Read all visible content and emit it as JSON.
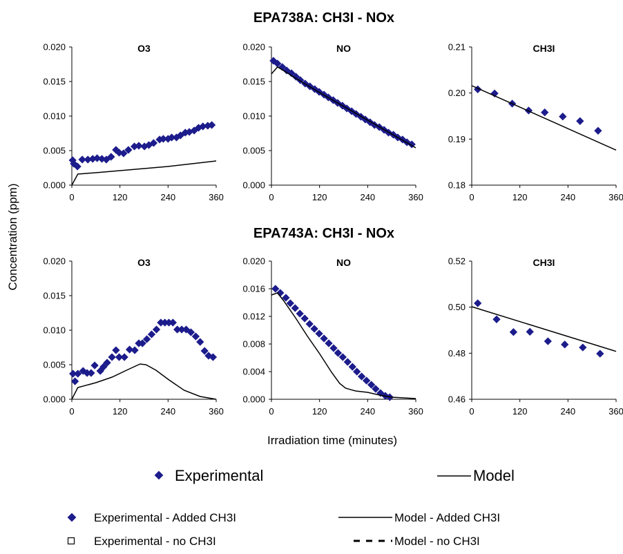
{
  "xlabel": "Irradiation time (minutes)",
  "ylabel": "Concentration (ppm)",
  "legend": {
    "experimental": "Experimental",
    "model": "Model",
    "exp_added": "Experimental - Added CH3I",
    "model_added": "Model - Added CH3I",
    "exp_no": "Experimental - no CH3I",
    "model_no": "Model - no CH3I"
  },
  "colors": {
    "experimental": "#1c1c8c",
    "model": "#000000"
  },
  "chart_data": [
    {
      "type": "scatter",
      "group_title": "EPA738A: CH3I - NOx",
      "title": "O3",
      "xlim": [
        0,
        360
      ],
      "xticks": [
        0,
        120,
        240,
        360
      ],
      "ylim": [
        0,
        0.02
      ],
      "yticks": [
        0,
        0.005,
        0.01,
        0.015,
        0.02
      ],
      "ydec": 3,
      "series": [
        {
          "kind": "markers",
          "x": [
            2,
            5,
            14,
            26,
            40,
            52,
            63,
            75,
            86,
            98,
            110,
            118,
            129,
            141,
            156,
            167,
            181,
            192,
            204,
            219,
            228,
            240,
            249,
            261,
            271,
            283,
            293,
            305,
            316,
            327,
            339,
            349
          ],
          "y": [
            0.0036,
            0.0031,
            0.0027,
            0.0037,
            0.0037,
            0.0038,
            0.0039,
            0.0038,
            0.0037,
            0.0041,
            0.0051,
            0.0047,
            0.0046,
            0.0051,
            0.0056,
            0.0057,
            0.0056,
            0.0058,
            0.0061,
            0.0066,
            0.0067,
            0.0067,
            0.0069,
            0.0069,
            0.0072,
            0.0076,
            0.0077,
            0.0079,
            0.0083,
            0.0085,
            0.0086,
            0.0087
          ]
        },
        {
          "kind": "line",
          "x": [
            0,
            15,
            60,
            120,
            180,
            240,
            300,
            360
          ],
          "y": [
            0.0,
            0.0016,
            0.0018,
            0.0021,
            0.0024,
            0.0027,
            0.0031,
            0.0035
          ]
        }
      ]
    },
    {
      "type": "scatter",
      "title": "NO",
      "xlim": [
        0,
        360
      ],
      "xticks": [
        0,
        120,
        240,
        360
      ],
      "ylim": [
        0,
        0.02
      ],
      "yticks": [
        0,
        0.005,
        0.01,
        0.015,
        0.02
      ],
      "ydec": 3,
      "series": [
        {
          "kind": "markers",
          "x": [
            5,
            15,
            27,
            38,
            50,
            61,
            72,
            84,
            96,
            108,
            119,
            131,
            142,
            154,
            165,
            177,
            188,
            200,
            211,
            223,
            234,
            246,
            257,
            269,
            281,
            292,
            304,
            315,
            327,
            338,
            350
          ],
          "y": [
            0.018,
            0.0176,
            0.0171,
            0.0166,
            0.0162,
            0.0157,
            0.0152,
            0.0147,
            0.0143,
            0.0139,
            0.0135,
            0.0131,
            0.0127,
            0.0123,
            0.0119,
            0.0115,
            0.0111,
            0.0107,
            0.0103,
            0.0099,
            0.0095,
            0.0091,
            0.0087,
            0.0084,
            0.008,
            0.0076,
            0.0073,
            0.0069,
            0.0066,
            0.0062,
            0.0059
          ]
        },
        {
          "kind": "line",
          "x": [
            0,
            15,
            30,
            60,
            120,
            180,
            240,
            300,
            360
          ],
          "y": [
            0.0161,
            0.0171,
            0.0166,
            0.0155,
            0.0134,
            0.0114,
            0.0094,
            0.0074,
            0.0054
          ]
        }
      ]
    },
    {
      "type": "scatter",
      "title": "CH3I",
      "xlim": [
        0,
        360
      ],
      "xticks": [
        0,
        120,
        240,
        360
      ],
      "ylim": [
        0.18,
        0.21
      ],
      "yticks": [
        0.18,
        0.19,
        0.2,
        0.21
      ],
      "ydec": 2,
      "series": [
        {
          "kind": "markers",
          "x": [
            15,
            57,
            101,
            142,
            182,
            227,
            270,
            315
          ],
          "y": [
            0.2008,
            0.1999,
            0.1977,
            0.1962,
            0.1958,
            0.1949,
            0.1939,
            0.1918
          ]
        },
        {
          "kind": "line",
          "x": [
            0,
            360
          ],
          "y": [
            0.2016,
            0.1876
          ]
        }
      ]
    },
    {
      "type": "scatter",
      "group_title": "EPA743A: CH3I - NOx",
      "title": "O3",
      "xlim": [
        0,
        360
      ],
      "xticks": [
        0,
        120,
        240,
        360
      ],
      "ylim": [
        0,
        0.02
      ],
      "yticks": [
        0,
        0.005,
        0.01,
        0.015,
        0.02
      ],
      "ydec": 3,
      "series": [
        {
          "kind": "markers",
          "x": [
            3,
            8,
            15,
            28,
            38,
            48,
            57,
            71,
            79,
            88,
            100,
            110,
            118,
            131,
            144,
            157,
            167,
            176,
            187,
            199,
            211,
            222,
            232,
            242,
            252,
            263,
            274,
            285,
            297,
            309,
            320,
            331,
            341,
            352
          ],
          "y": [
            0.0037,
            0.0026,
            0.0037,
            0.0041,
            0.0038,
            0.0038,
            0.0049,
            0.0041,
            0.0047,
            0.0053,
            0.0061,
            0.0071,
            0.0061,
            0.0061,
            0.0072,
            0.0071,
            0.0081,
            0.0081,
            0.0087,
            0.0094,
            0.0101,
            0.0111,
            0.0111,
            0.0111,
            0.0111,
            0.0101,
            0.0101,
            0.0101,
            0.0097,
            0.0091,
            0.0083,
            0.007,
            0.0063,
            0.0061
          ]
        },
        {
          "kind": "line",
          "x": [
            0,
            15,
            60,
            100,
            140,
            170,
            185,
            210,
            240,
            280,
            320,
            360
          ],
          "y": [
            0.0,
            0.0017,
            0.0024,
            0.0032,
            0.0043,
            0.0051,
            0.005,
            0.0042,
            0.0029,
            0.0013,
            0.0004,
            0.0
          ]
        }
      ]
    },
    {
      "type": "scatter",
      "title": "NO",
      "xlim": [
        0,
        360
      ],
      "xticks": [
        0,
        120,
        240,
        360
      ],
      "ylim": [
        0,
        0.02
      ],
      "yticks": [
        0,
        0.004,
        0.008,
        0.012,
        0.016,
        0.02
      ],
      "ydec": 3,
      "series": [
        {
          "kind": "markers",
          "x": [
            10,
            22,
            36,
            47,
            59,
            71,
            83,
            95,
            107,
            119,
            131,
            143,
            155,
            166,
            178,
            190,
            202,
            213,
            225,
            237,
            249,
            260,
            272,
            284,
            295
          ],
          "y": [
            0.016,
            0.0154,
            0.0147,
            0.0139,
            0.0132,
            0.0124,
            0.0117,
            0.0109,
            0.0102,
            0.0095,
            0.0088,
            0.0081,
            0.0074,
            0.0067,
            0.0061,
            0.0054,
            0.0047,
            0.004,
            0.0033,
            0.0027,
            0.0021,
            0.0015,
            0.0009,
            0.0005,
            0.0003
          ]
        },
        {
          "kind": "line",
          "x": [
            0,
            15,
            30,
            60,
            90,
            120,
            150,
            170,
            185,
            210,
            240,
            270,
            300,
            330,
            360
          ],
          "y": [
            0.0151,
            0.0154,
            0.0143,
            0.0118,
            0.0091,
            0.0066,
            0.0039,
            0.0023,
            0.0016,
            0.0012,
            0.001,
            0.0006,
            0.0003,
            0.0002,
            0.0001
          ]
        }
      ]
    },
    {
      "type": "scatter",
      "title": "CH3I",
      "xlim": [
        0,
        360
      ],
      "xticks": [
        0,
        120,
        240,
        360
      ],
      "ylim": [
        0.46,
        0.52
      ],
      "yticks": [
        0.46,
        0.48,
        0.5,
        0.52
      ],
      "ydec": 2,
      "series": [
        {
          "kind": "markers",
          "x": [
            15,
            62,
            104,
            145,
            190,
            232,
            277,
            320
          ],
          "y": [
            0.5017,
            0.4947,
            0.4892,
            0.4893,
            0.4852,
            0.4838,
            0.4825,
            0.4798
          ]
        },
        {
          "kind": "line",
          "x": [
            0,
            360
          ],
          "y": [
            0.5002,
            0.4808
          ]
        }
      ]
    }
  ]
}
